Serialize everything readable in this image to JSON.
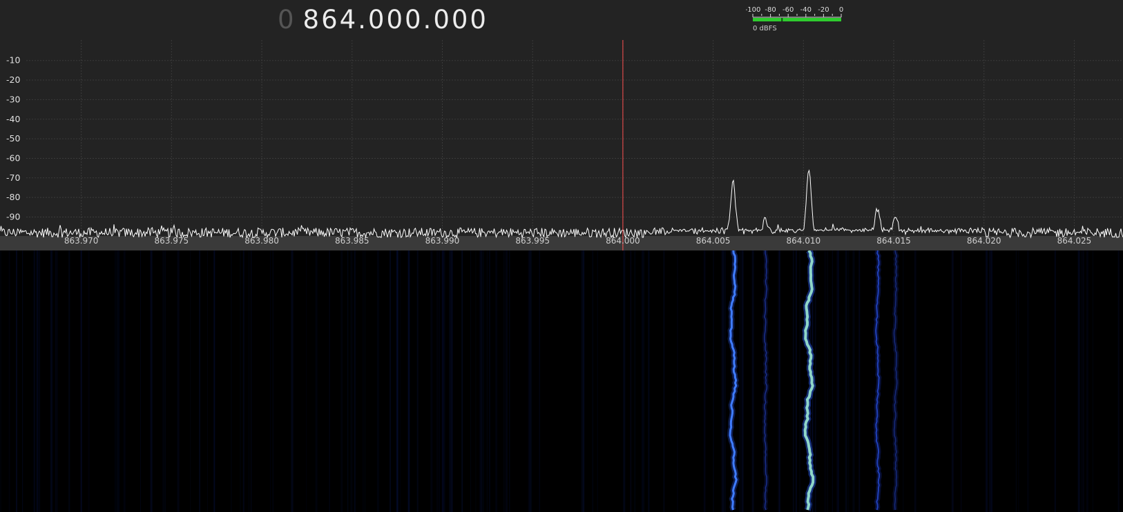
{
  "frequency": {
    "leading": "0",
    "value": "864.000.000"
  },
  "level_meter": {
    "scale": [
      "-100",
      "-80",
      "-60",
      "-40",
      "-20",
      "0"
    ],
    "unit_label": "0 dBFS",
    "level_dbfs": -67,
    "colors": {
      "bar": "#2ecc2e",
      "bar_dark": "#1a7a1a"
    }
  },
  "spectrum": {
    "db_labels": [
      "-10",
      "-20",
      "-30",
      "-40",
      "-50",
      "-60",
      "-70",
      "-80",
      "-90"
    ],
    "db_values": [
      -10,
      -20,
      -30,
      -40,
      -50,
      -60,
      -70,
      -80,
      -90
    ],
    "freq_labels": [
      "863.970",
      "863.975",
      "863.980",
      "863.985",
      "863.990",
      "863.995",
      "864.000",
      "864.005",
      "864.010",
      "864.015",
      "864.020",
      "864.025"
    ],
    "freq_values": [
      863.97,
      863.975,
      863.98,
      863.985,
      863.99,
      863.995,
      864.0,
      864.005,
      864.01,
      864.015,
      864.02,
      864.025
    ],
    "center_mhz": 864.0,
    "noise_floor_db": -98,
    "peaks": [
      {
        "freq": 864.0061,
        "db": -72
      },
      {
        "freq": 864.0103,
        "db": -66
      },
      {
        "freq": 864.0141,
        "db": -86
      },
      {
        "freq": 864.0079,
        "db": -91
      },
      {
        "freq": 864.0151,
        "db": -90
      }
    ],
    "colors": {
      "grid": "#3b3b3b",
      "trace": "#ffffff",
      "center_line": "#ff5050",
      "axis_text": "#e0e0e0",
      "freq_text": "#cfcfcf"
    }
  }
}
